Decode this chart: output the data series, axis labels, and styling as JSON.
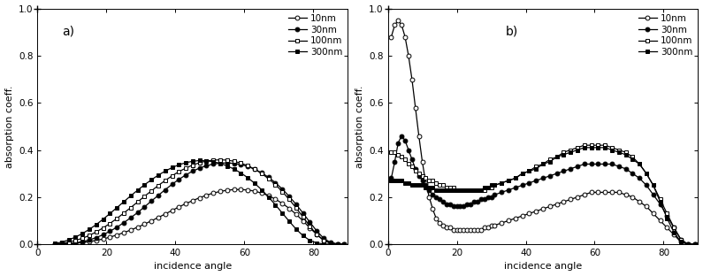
{
  "panel_a": {
    "label": "a)",
    "angles": [
      5,
      7,
      9,
      11,
      13,
      15,
      17,
      19,
      21,
      23,
      25,
      27,
      29,
      31,
      33,
      35,
      37,
      39,
      41,
      43,
      45,
      47,
      49,
      51,
      53,
      55,
      57,
      59,
      61,
      63,
      65,
      67,
      69,
      71,
      73,
      75,
      77,
      79,
      81,
      83,
      85,
      87,
      89
    ],
    "10nm": [
      0.0,
      0.001,
      0.002,
      0.004,
      0.007,
      0.011,
      0.016,
      0.022,
      0.03,
      0.039,
      0.049,
      0.06,
      0.072,
      0.085,
      0.099,
      0.113,
      0.128,
      0.143,
      0.158,
      0.172,
      0.185,
      0.197,
      0.208,
      0.217,
      0.224,
      0.229,
      0.232,
      0.232,
      0.23,
      0.225,
      0.217,
      0.206,
      0.191,
      0.173,
      0.152,
      0.127,
      0.099,
      0.069,
      0.041,
      0.017,
      0.004,
      0.001,
      0.0
    ],
    "30nm": [
      0.0,
      0.001,
      0.003,
      0.006,
      0.011,
      0.018,
      0.028,
      0.04,
      0.055,
      0.072,
      0.091,
      0.112,
      0.134,
      0.158,
      0.183,
      0.207,
      0.231,
      0.254,
      0.275,
      0.294,
      0.31,
      0.323,
      0.333,
      0.34,
      0.344,
      0.345,
      0.343,
      0.338,
      0.33,
      0.318,
      0.303,
      0.284,
      0.261,
      0.234,
      0.203,
      0.169,
      0.132,
      0.093,
      0.056,
      0.025,
      0.007,
      0.001,
      0.0
    ],
    "100nm": [
      0.001,
      0.004,
      0.009,
      0.016,
      0.025,
      0.037,
      0.052,
      0.069,
      0.088,
      0.109,
      0.132,
      0.155,
      0.179,
      0.203,
      0.226,
      0.249,
      0.27,
      0.29,
      0.308,
      0.323,
      0.336,
      0.346,
      0.353,
      0.357,
      0.358,
      0.357,
      0.352,
      0.344,
      0.333,
      0.318,
      0.3,
      0.278,
      0.253,
      0.223,
      0.19,
      0.154,
      0.115,
      0.076,
      0.041,
      0.016,
      0.004,
      0.001,
      0.0
    ],
    "300nm": [
      0.003,
      0.009,
      0.018,
      0.03,
      0.045,
      0.063,
      0.083,
      0.106,
      0.13,
      0.155,
      0.18,
      0.205,
      0.229,
      0.252,
      0.273,
      0.293,
      0.31,
      0.325,
      0.337,
      0.346,
      0.352,
      0.355,
      0.354,
      0.35,
      0.343,
      0.332,
      0.319,
      0.302,
      0.282,
      0.258,
      0.231,
      0.2,
      0.167,
      0.132,
      0.097,
      0.064,
      0.036,
      0.016,
      0.005,
      0.001,
      0.0,
      0.0,
      0.0
    ]
  },
  "panel_b": {
    "label": "b)",
    "angles": [
      1,
      2,
      3,
      4,
      5,
      6,
      7,
      8,
      9,
      10,
      11,
      12,
      13,
      14,
      15,
      16,
      17,
      18,
      19,
      20,
      21,
      22,
      23,
      24,
      25,
      26,
      27,
      28,
      29,
      30,
      31,
      33,
      35,
      37,
      39,
      41,
      43,
      45,
      47,
      49,
      51,
      53,
      55,
      57,
      59,
      61,
      63,
      65,
      67,
      69,
      71,
      73,
      75,
      77,
      79,
      81,
      83,
      85,
      87,
      89
    ],
    "10nm": [
      0.88,
      0.93,
      0.95,
      0.93,
      0.88,
      0.8,
      0.7,
      0.58,
      0.46,
      0.35,
      0.26,
      0.2,
      0.15,
      0.11,
      0.09,
      0.08,
      0.07,
      0.07,
      0.06,
      0.06,
      0.06,
      0.06,
      0.06,
      0.06,
      0.06,
      0.06,
      0.06,
      0.07,
      0.07,
      0.08,
      0.08,
      0.09,
      0.1,
      0.11,
      0.12,
      0.13,
      0.14,
      0.15,
      0.16,
      0.17,
      0.18,
      0.19,
      0.2,
      0.21,
      0.22,
      0.22,
      0.22,
      0.22,
      0.22,
      0.21,
      0.2,
      0.18,
      0.16,
      0.13,
      0.1,
      0.07,
      0.04,
      0.01,
      0.0,
      0.0
    ],
    "30nm": [
      0.28,
      0.35,
      0.43,
      0.46,
      0.44,
      0.4,
      0.36,
      0.32,
      0.29,
      0.27,
      0.25,
      0.23,
      0.21,
      0.2,
      0.19,
      0.18,
      0.17,
      0.17,
      0.16,
      0.16,
      0.16,
      0.16,
      0.17,
      0.17,
      0.18,
      0.18,
      0.19,
      0.19,
      0.2,
      0.2,
      0.21,
      0.22,
      0.23,
      0.24,
      0.25,
      0.26,
      0.27,
      0.28,
      0.29,
      0.3,
      0.31,
      0.32,
      0.33,
      0.34,
      0.34,
      0.34,
      0.34,
      0.34,
      0.33,
      0.32,
      0.3,
      0.28,
      0.25,
      0.21,
      0.17,
      0.12,
      0.07,
      0.02,
      0.0,
      0.0
    ],
    "100nm": [
      0.39,
      0.39,
      0.38,
      0.37,
      0.36,
      0.34,
      0.33,
      0.31,
      0.3,
      0.29,
      0.28,
      0.27,
      0.27,
      0.26,
      0.25,
      0.25,
      0.24,
      0.24,
      0.24,
      0.23,
      0.23,
      0.23,
      0.23,
      0.23,
      0.23,
      0.23,
      0.23,
      0.23,
      0.24,
      0.24,
      0.25,
      0.26,
      0.27,
      0.28,
      0.3,
      0.31,
      0.33,
      0.34,
      0.36,
      0.37,
      0.39,
      0.4,
      0.41,
      0.42,
      0.42,
      0.42,
      0.42,
      0.41,
      0.4,
      0.39,
      0.37,
      0.34,
      0.3,
      0.25,
      0.19,
      0.13,
      0.07,
      0.02,
      0.0,
      0.0
    ],
    "300nm": [
      0.27,
      0.27,
      0.27,
      0.27,
      0.26,
      0.26,
      0.25,
      0.25,
      0.25,
      0.25,
      0.24,
      0.24,
      0.24,
      0.23,
      0.23,
      0.23,
      0.23,
      0.23,
      0.23,
      0.23,
      0.23,
      0.23,
      0.23,
      0.23,
      0.23,
      0.23,
      0.23,
      0.24,
      0.24,
      0.25,
      0.25,
      0.26,
      0.27,
      0.28,
      0.3,
      0.31,
      0.32,
      0.34,
      0.35,
      0.37,
      0.38,
      0.39,
      0.4,
      0.41,
      0.41,
      0.41,
      0.41,
      0.4,
      0.39,
      0.38,
      0.36,
      0.34,
      0.3,
      0.25,
      0.18,
      0.11,
      0.05,
      0.01,
      0.0,
      0.0
    ]
  },
  "ylabel": "absorption coeff.",
  "xlabel": "incidence angle",
  "ylim": [
    0.0,
    1.0
  ],
  "xlim": [
    0,
    90
  ],
  "yticks": [
    0.0,
    0.2,
    0.4,
    0.6,
    0.8,
    1.0
  ],
  "xticks": [
    0,
    20,
    40,
    60,
    80
  ],
  "legend_labels": [
    "10nm",
    "30nm",
    "100nm",
    "300nm"
  ]
}
